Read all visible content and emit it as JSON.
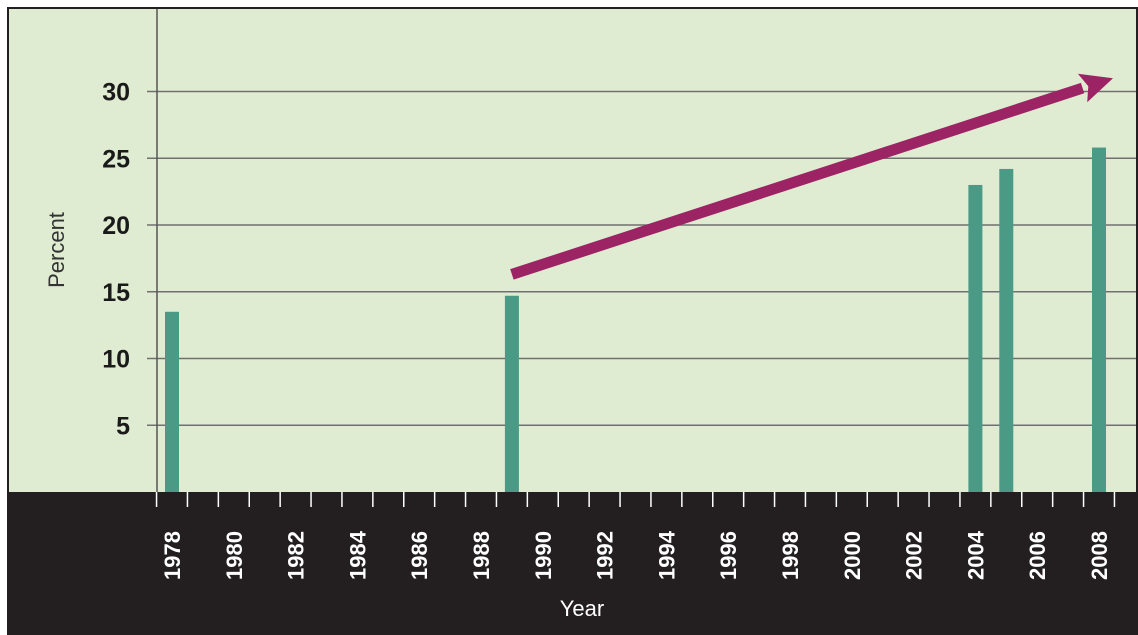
{
  "chart_data": {
    "type": "bar",
    "title": "",
    "xlabel": "Year",
    "ylabel": "Percent",
    "x_ticks": [
      "1978",
      "1980",
      "1982",
      "1984",
      "1986",
      "1988",
      "1990",
      "1992",
      "1994",
      "1996",
      "1998",
      "2000",
      "2002",
      "2004",
      "2006",
      "2008"
    ],
    "y_ticks": [
      5,
      10,
      15,
      20,
      25,
      30
    ],
    "xlim": [
      1977,
      2009
    ],
    "ylim": [
      0,
      36
    ],
    "grid": true,
    "legend": "none",
    "categories": [
      "1978",
      "1989",
      "2004",
      "2005",
      "2008"
    ],
    "x": [
      1978,
      1989,
      2004,
      2005,
      2008
    ],
    "values": [
      13.5,
      14.7,
      23.0,
      24.2,
      25.8
    ],
    "trend_arrow": {
      "x_start": 1989,
      "y_start": 16.3,
      "x_end": 2008,
      "y_end": 31.0
    },
    "colors": {
      "plot_background": "#e0ecd2",
      "bar": "#4a9a86",
      "arrow": "#9c2465",
      "x_axis_band": "#231f20",
      "gridline": "#707070"
    }
  }
}
